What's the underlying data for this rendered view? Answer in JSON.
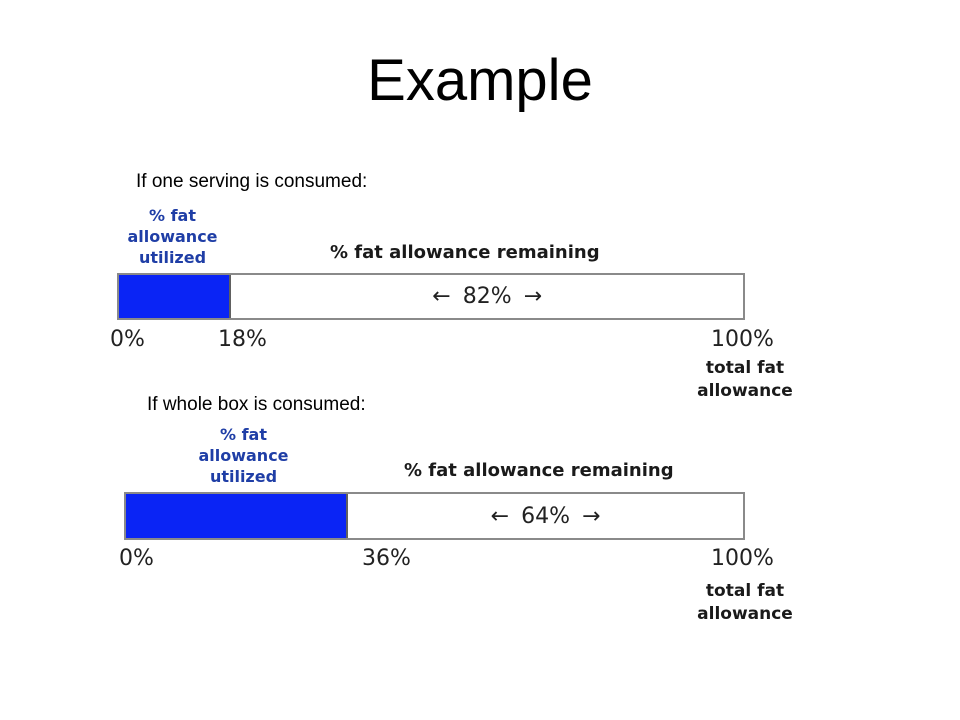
{
  "title": "Example",
  "diagrams": [
    {
      "caption": "If one serving is consumed:",
      "utilized_label": [
        "% fat",
        "allowance",
        "utilized"
      ],
      "remaining_label": "% fat allowance remaining",
      "utilized_fraction": 0.18,
      "arrow_left": "←",
      "remaining_value": "82%",
      "arrow_right": "→",
      "tick_start": "0%",
      "tick_mid": "18%",
      "tick_end": "100%",
      "total_label": [
        "total fat",
        "allowance"
      ]
    },
    {
      "caption": "If whole box is consumed:",
      "utilized_label": [
        "% fat",
        "allowance",
        "utilized"
      ],
      "remaining_label": "% fat allowance remaining",
      "utilized_fraction": 0.36,
      "arrow_left": "←",
      "remaining_value": "64%",
      "arrow_right": "→",
      "tick_start": "0%",
      "tick_mid": "36%",
      "tick_end": "100%",
      "total_label": [
        "total fat",
        "allowance"
      ]
    }
  ],
  "colors": {
    "utilized_fill": "#0a24f5",
    "utilized_label": "#1f3ea6",
    "bar_border": "#8a8a8a"
  }
}
